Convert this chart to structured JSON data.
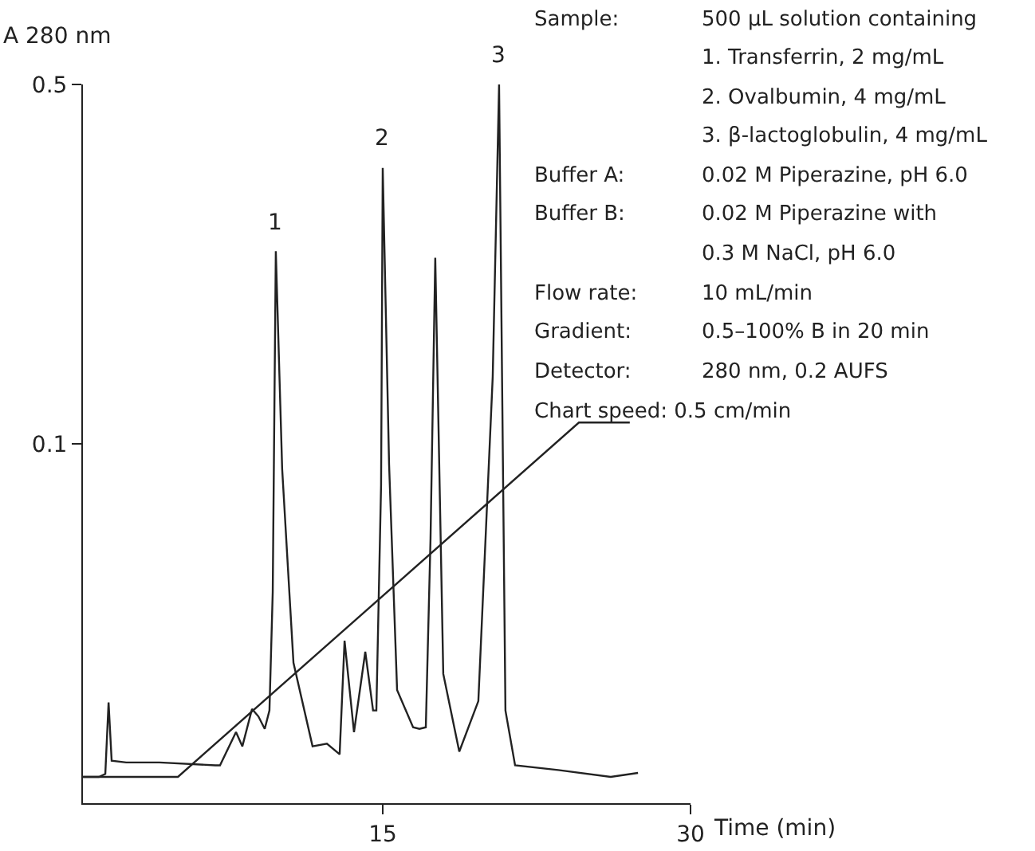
{
  "chart_data": {
    "type": "line",
    "ylabel": "A 280 nm",
    "xlabel": "Time (min)",
    "xlim": [
      0.39,
      30
    ],
    "xticks": [
      15,
      30
    ],
    "ylim": [
      0.02,
      0.5
    ],
    "yticks": [
      0.1,
      0.5
    ],
    "log": "y",
    "marker": "none",
    "line_style": "solid",
    "series": [
      {
        "color": "#222222",
        "x": [
          0.39,
          1.17,
          1.48,
          1.64,
          1.79,
          2.5,
          4.12,
          6.84,
          7.07,
          7.85,
          8.16,
          8.63,
          8.94,
          9.25,
          9.48,
          9.64,
          9.79,
          10.1,
          10.65,
          11.58,
          12.28,
          12.9,
          13.14,
          13.6,
          14.15,
          14.53,
          14.69,
          14.92,
          15.0,
          15.31,
          15.7,
          16.48,
          16.79,
          17.1,
          17.33,
          17.56,
          17.95,
          18.73,
          19.66,
          20.36,
          20.67,
          20.98,
          21.45,
          23.55,
          26.11,
          27.44
        ],
        "values": [
          0.0225,
          0.0225,
          0.0228,
          0.0314,
          0.0242,
          0.024,
          0.024,
          0.0237,
          0.0237,
          0.0275,
          0.0258,
          0.0305,
          0.0295,
          0.0279,
          0.0303,
          0.0515,
          0.237,
          0.0893,
          0.0375,
          0.0258,
          0.0261,
          0.0249,
          0.0414,
          0.0275,
          0.0394,
          0.0303,
          0.0303,
          0.0832,
          0.344,
          0.0912,
          0.0332,
          0.0281,
          0.0279,
          0.0281,
          0.0655,
          0.23,
          0.0357,
          0.0252,
          0.0316,
          0.135,
          0.5,
          0.0303,
          0.0237,
          0.0232,
          0.0225,
          0.0229
        ]
      },
      {
        "color": "#222222",
        "x": [
          0.39,
          5.02,
          24.56,
          27.04
        ],
        "values": [
          0.0225,
          0.0225,
          0.11,
          0.11
        ]
      }
    ],
    "annotations": [
      {
        "text": "1",
        "x": 9.79,
        "y": 0.237
      },
      {
        "text": "2",
        "x": 15.0,
        "y": 0.344
      },
      {
        "text": "3",
        "x": 20.67,
        "y": 0.5
      },
      "Sample:\t500 µL solution containing",
      "\t1. Transferrin, 2 mg/mL",
      "\t2. Ovalbumin, 4 mg/mL",
      "\t3. β-lactoglobulin, 4 mg/mL",
      "Buffer A:\t0.02 M Piperazine, pH 6.0",
      "Buffer B:\t0.02 M Piperazine with",
      "\t0.3 M NaCl, pH 6.0",
      "Flow rate:\t10 mL/min",
      "Gradient:\t0.5–100% B in 20 min",
      "Detector:\t280 nm, 0.2 AUFS",
      "Chart speed: 0.5 cm/min"
    ]
  }
}
